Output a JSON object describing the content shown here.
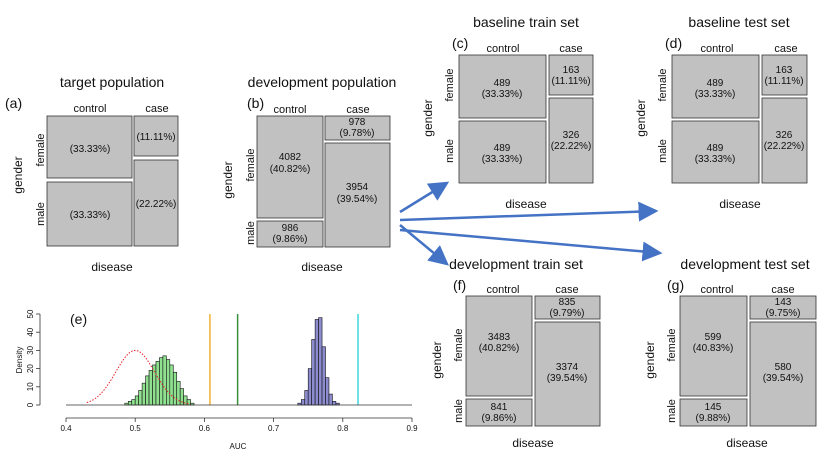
{
  "panels": [
    {
      "id": "a",
      "label": "(a)",
      "title": "target population",
      "xlabel": "disease",
      "ylabel": "gender",
      "col_labels": [
        "control",
        "case"
      ],
      "row_labels": [
        "female",
        "male"
      ],
      "cells": {
        "control_female": {
          "count": "",
          "pct": "(33.33%)"
        },
        "control_male": {
          "count": "",
          "pct": "(33.33%)"
        },
        "case_female": {
          "count": "",
          "pct": "(11.11%)"
        },
        "case_male": {
          "count": "",
          "pct": "(22.22%)"
        }
      }
    },
    {
      "id": "b",
      "label": "(b)",
      "title": "development population",
      "xlabel": "disease",
      "ylabel": "gender",
      "col_labels": [
        "control",
        "case"
      ],
      "row_labels": [
        "female",
        "male"
      ],
      "cells": {
        "control_female": {
          "count": "4082",
          "pct": "(40.82%)"
        },
        "control_male": {
          "count": "986",
          "pct": "(9.86%)"
        },
        "case_female": {
          "count": "978",
          "pct": "(9.78%)"
        },
        "case_male": {
          "count": "3954",
          "pct": "(39.54%)"
        }
      }
    },
    {
      "id": "c",
      "label": "(c)",
      "title": "baseline train set",
      "xlabel": "disease",
      "ylabel": "gender",
      "col_labels": [
        "control",
        "case"
      ],
      "row_labels": [
        "female",
        "male"
      ],
      "cells": {
        "control_female": {
          "count": "489",
          "pct": "(33.33%)"
        },
        "control_male": {
          "count": "489",
          "pct": "(33.33%)"
        },
        "case_female": {
          "count": "163",
          "pct": "(11.11%)"
        },
        "case_male": {
          "count": "326",
          "pct": "(22.22%)"
        }
      }
    },
    {
      "id": "d",
      "label": "(d)",
      "title": "baseline test set",
      "xlabel": "disease",
      "ylabel": "gender",
      "col_labels": [
        "control",
        "case"
      ],
      "row_labels": [
        "female",
        "male"
      ],
      "cells": {
        "control_female": {
          "count": "489",
          "pct": "(33.33%)"
        },
        "control_male": {
          "count": "489",
          "pct": "(33.33%)"
        },
        "case_female": {
          "count": "163",
          "pct": "(11.11%)"
        },
        "case_male": {
          "count": "326",
          "pct": "(22.22%)"
        }
      }
    },
    {
      "id": "f",
      "label": "(f)",
      "title": "development train set",
      "xlabel": "disease",
      "ylabel": "gender",
      "col_labels": [
        "control",
        "case"
      ],
      "row_labels": [
        "female",
        "male"
      ],
      "cells": {
        "control_female": {
          "count": "3483",
          "pct": "(40.82%)"
        },
        "control_male": {
          "count": "841",
          "pct": "(9.86%)"
        },
        "case_female": {
          "count": "835",
          "pct": "(9.79%)"
        },
        "case_male": {
          "count": "3374",
          "pct": "(39.54%)"
        }
      }
    },
    {
      "id": "g",
      "label": "(g)",
      "title": "development test set",
      "xlabel": "disease",
      "ylabel": "gender",
      "col_labels": [
        "control",
        "case"
      ],
      "row_labels": [
        "female",
        "male"
      ],
      "cells": {
        "control_female": {
          "count": "599",
          "pct": "(40.83%)"
        },
        "control_male": {
          "count": "145",
          "pct": "(9.88%)"
        },
        "case_female": {
          "count": "143",
          "pct": "(9.75%)"
        },
        "case_male": {
          "count": "580",
          "pct": "(39.54%)"
        }
      }
    }
  ],
  "histogram": {
    "label": "(e)",
    "xlabel": "AUC",
    "ylabel": "Density",
    "x_ticks": [
      "0.4",
      "0.5",
      "0.6",
      "0.7",
      "0.8",
      "0.9"
    ],
    "y_ticks": [
      "0",
      "10",
      "20",
      "30",
      "40",
      "50"
    ]
  },
  "chart_data": {
    "type": "histogram",
    "xlabel": "AUC",
    "ylabel": "Density",
    "xlim": [
      0.4,
      0.9
    ],
    "ylim": [
      0,
      50
    ],
    "series": [
      {
        "name": "red density curve",
        "color": "#e8202a",
        "style": "dotted",
        "mean": 0.5,
        "peak": 30
      },
      {
        "name": "green histogram",
        "color": "#8fe08f",
        "bins": [
          0.485,
          0.49,
          0.495,
          0.5,
          0.505,
          0.51,
          0.515,
          0.52,
          0.525,
          0.53,
          0.535,
          0.54,
          0.545,
          0.55,
          0.555,
          0.56,
          0.565,
          0.57,
          0.575,
          0.58
        ],
        "values": [
          1,
          2,
          3,
          5,
          8,
          12,
          16,
          19,
          22,
          24,
          26,
          27,
          25,
          22,
          18,
          13,
          9,
          5,
          3,
          1
        ]
      },
      {
        "name": "blue histogram",
        "color": "#8c8ccf",
        "bins": [
          0.735,
          0.74,
          0.745,
          0.75,
          0.755,
          0.76,
          0.765,
          0.77,
          0.775,
          0.78,
          0.785,
          0.79
        ],
        "values": [
          1,
          3,
          8,
          20,
          36,
          47,
          48,
          32,
          15,
          6,
          2,
          1
        ]
      }
    ],
    "vlines": [
      {
        "x": 0.608,
        "color": "#f2b233"
      },
      {
        "x": 0.648,
        "color": "#3a8f3a"
      },
      {
        "x": 0.822,
        "color": "#3cd8dc"
      }
    ]
  },
  "colors": {
    "cell": "#c1c1c1",
    "arrow": "#4472c4"
  }
}
